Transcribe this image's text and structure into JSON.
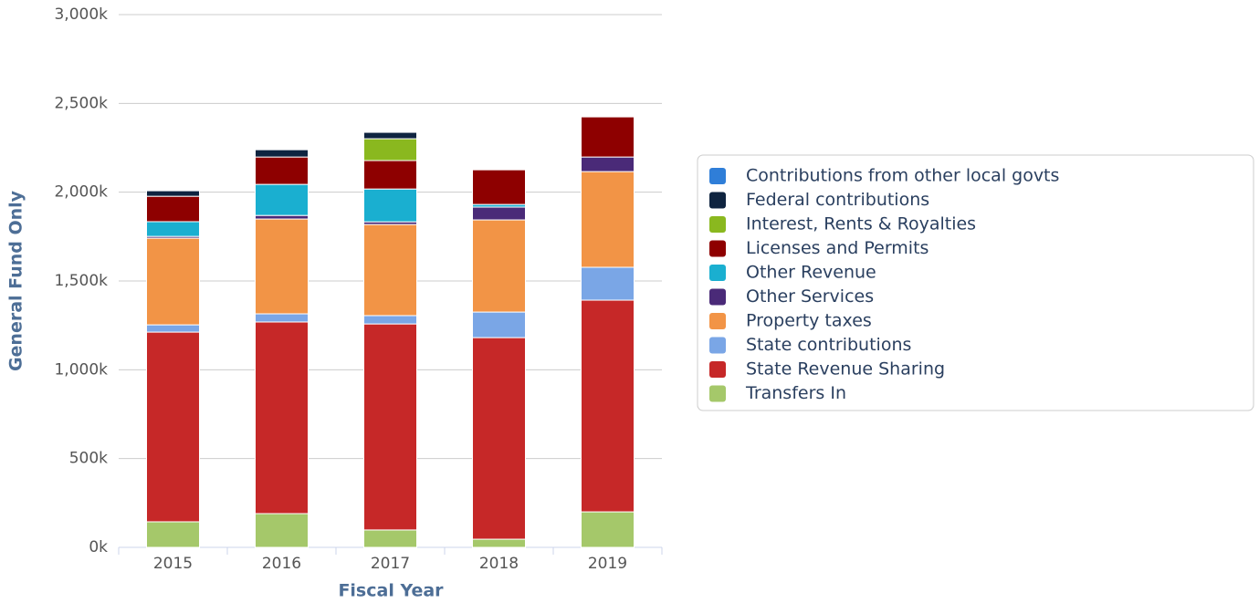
{
  "chart_data": {
    "type": "stacked_bar",
    "x_label": "Fiscal Year",
    "y_label": "General Fund Only",
    "categories": [
      "2015",
      "2016",
      "2017",
      "2018",
      "2019"
    ],
    "ylim": [
      0,
      3000
    ],
    "yticks": [
      {
        "value": 0,
        "label": "0k"
      },
      {
        "value": 500,
        "label": "500k"
      },
      {
        "value": 1000,
        "label": "1,000k"
      },
      {
        "value": 1500,
        "label": "1,500k"
      },
      {
        "value": 2000,
        "label": "2,000k"
      },
      {
        "value": 2500,
        "label": "2,500k"
      },
      {
        "value": 3000,
        "label": "3,000k"
      }
    ],
    "grid": true,
    "legend": "right",
    "series": [
      {
        "name": "Transfers In",
        "color": "#a5c86a",
        "values": [
          144,
          190,
          98,
          46,
          200
        ]
      },
      {
        "name": "State Revenue Sharing",
        "color": "#c62828",
        "values": [
          1068,
          1079,
          1160,
          1135,
          1192
        ]
      },
      {
        "name": "State contributions",
        "color": "#7aa6e6",
        "values": [
          41,
          46,
          47,
          144,
          185
        ]
      },
      {
        "name": "Property taxes",
        "color": "#f29446",
        "values": [
          488,
          534,
          513,
          519,
          539
        ]
      },
      {
        "name": "Other Services",
        "color": "#4a2a78",
        "values": [
          10,
          20,
          15,
          72,
          82
        ]
      },
      {
        "name": "Other Revenue",
        "color": "#1aafd0",
        "values": [
          83,
          175,
          185,
          15,
          0
        ]
      },
      {
        "name": "Licenses and Permits",
        "color": "#8e0000",
        "values": [
          143,
          154,
          160,
          195,
          226
        ]
      },
      {
        "name": "Interest, Rents & Royalties",
        "color": "#8ab81f",
        "values": [
          0,
          0,
          123,
          0,
          0
        ]
      },
      {
        "name": "Federal contributions",
        "color": "#0f2440",
        "values": [
          31,
          41,
          36,
          0,
          0
        ]
      },
      {
        "name": "Contributions from other local govts",
        "color": "#2f7ed8",
        "values": [
          0,
          0,
          0,
          0,
          0
        ]
      }
    ]
  }
}
